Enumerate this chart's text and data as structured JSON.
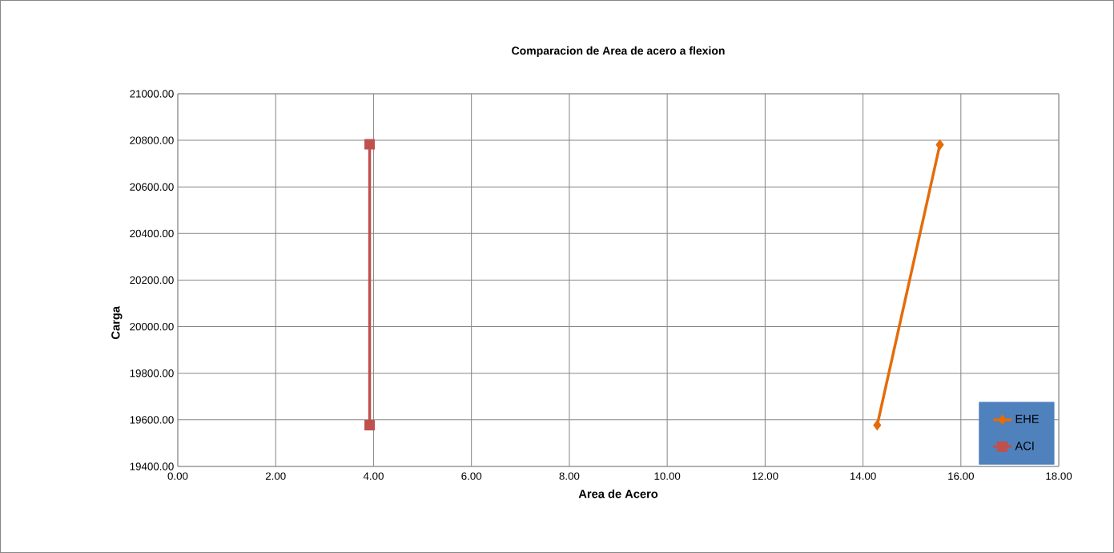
{
  "chart_data": {
    "type": "line",
    "title": "Comparacion de Area de acero a flexion",
    "xlabel": "Area de Acero",
    "ylabel": "Carga",
    "series": [
      {
        "name": "EHE",
        "color": "#e46c0a",
        "marker": "diamond",
        "x": [
          14.29,
          15.57
        ],
        "values": [
          19577,
          20781
        ]
      },
      {
        "name": "ACI",
        "color": "#c0504d",
        "marker": "square",
        "x": [
          3.92,
          3.92
        ],
        "values": [
          19577,
          20783
        ]
      }
    ],
    "xlim": [
      0,
      18
    ],
    "xticks": [
      {
        "value": 0,
        "label": "0.00"
      },
      {
        "value": 2,
        "label": "2.00"
      },
      {
        "value": 4,
        "label": "4.00"
      },
      {
        "value": 6,
        "label": "6.00"
      },
      {
        "value": 8,
        "label": "8.00"
      },
      {
        "value": 10,
        "label": "10.00"
      },
      {
        "value": 12,
        "label": "12.00"
      },
      {
        "value": 14,
        "label": "14.00"
      },
      {
        "value": 16,
        "label": "16.00"
      },
      {
        "value": 18,
        "label": "18.00"
      }
    ],
    "ylim": [
      19400,
      21000
    ],
    "yticks": [
      {
        "value": 19400,
        "label": "19400.00"
      },
      {
        "value": 19600,
        "label": "19600.00"
      },
      {
        "value": 19800,
        "label": "19800.00"
      },
      {
        "value": 20000,
        "label": "20000.00"
      },
      {
        "value": 20200,
        "label": "20200.00"
      },
      {
        "value": 20400,
        "label": "20400.00"
      },
      {
        "value": 20600,
        "label": "20600.00"
      },
      {
        "value": 20800,
        "label": "20800.00"
      },
      {
        "value": 21000,
        "label": "21000.00"
      }
    ],
    "grid": true,
    "legend": "bottom right"
  }
}
